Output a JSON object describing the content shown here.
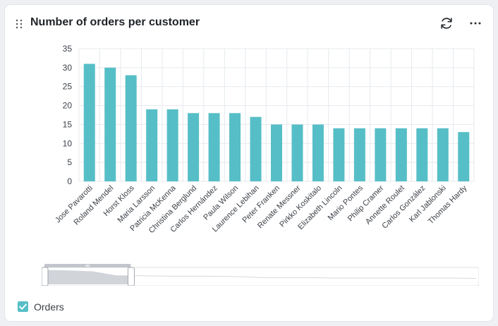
{
  "card": {
    "title": "Number of orders per customer",
    "icons": {
      "drag": "drag-handle-icon",
      "refresh": "refresh-icon",
      "more": "more-horizontal-icon"
    }
  },
  "chart_data": {
    "type": "bar",
    "categories": [
      "Jose Pavarotti",
      "Roland Mendel",
      "Horst Kloss",
      "Maria Larsson",
      "Patricia McKenna",
      "Christina Berglund",
      "Carlos Hernández",
      "Paula Wilson",
      "Laurence Lebihan",
      "Peter Franken",
      "Renate Messner",
      "Pirkko Koskitalo",
      "Elizabeth Lincoln",
      "Mario Pontes",
      "Philip Cramer",
      "Annette Roulet",
      "Carlos González",
      "Karl Jablonski",
      "Thomas Hardy"
    ],
    "series": [
      {
        "name": "Orders",
        "values": [
          31,
          30,
          28,
          19,
          19,
          18,
          18,
          18,
          17,
          15,
          15,
          15,
          14,
          14,
          14,
          14,
          14,
          14,
          13
        ]
      }
    ],
    "yticks": [
      "0",
      "5",
      "10",
      "15",
      "20",
      "25",
      "30",
      "35"
    ],
    "ylim": [
      0,
      35
    ],
    "grid": true,
    "legend_position": "bottom-left",
    "colors": {
      "bar": "#56bec7",
      "grid": "#e6e9ee",
      "axis_text": "#3c4148"
    }
  },
  "zoom": {
    "start": 0,
    "end": 0.2
  },
  "legend": {
    "label": "Orders",
    "checked": true,
    "color": "#56bec7"
  }
}
